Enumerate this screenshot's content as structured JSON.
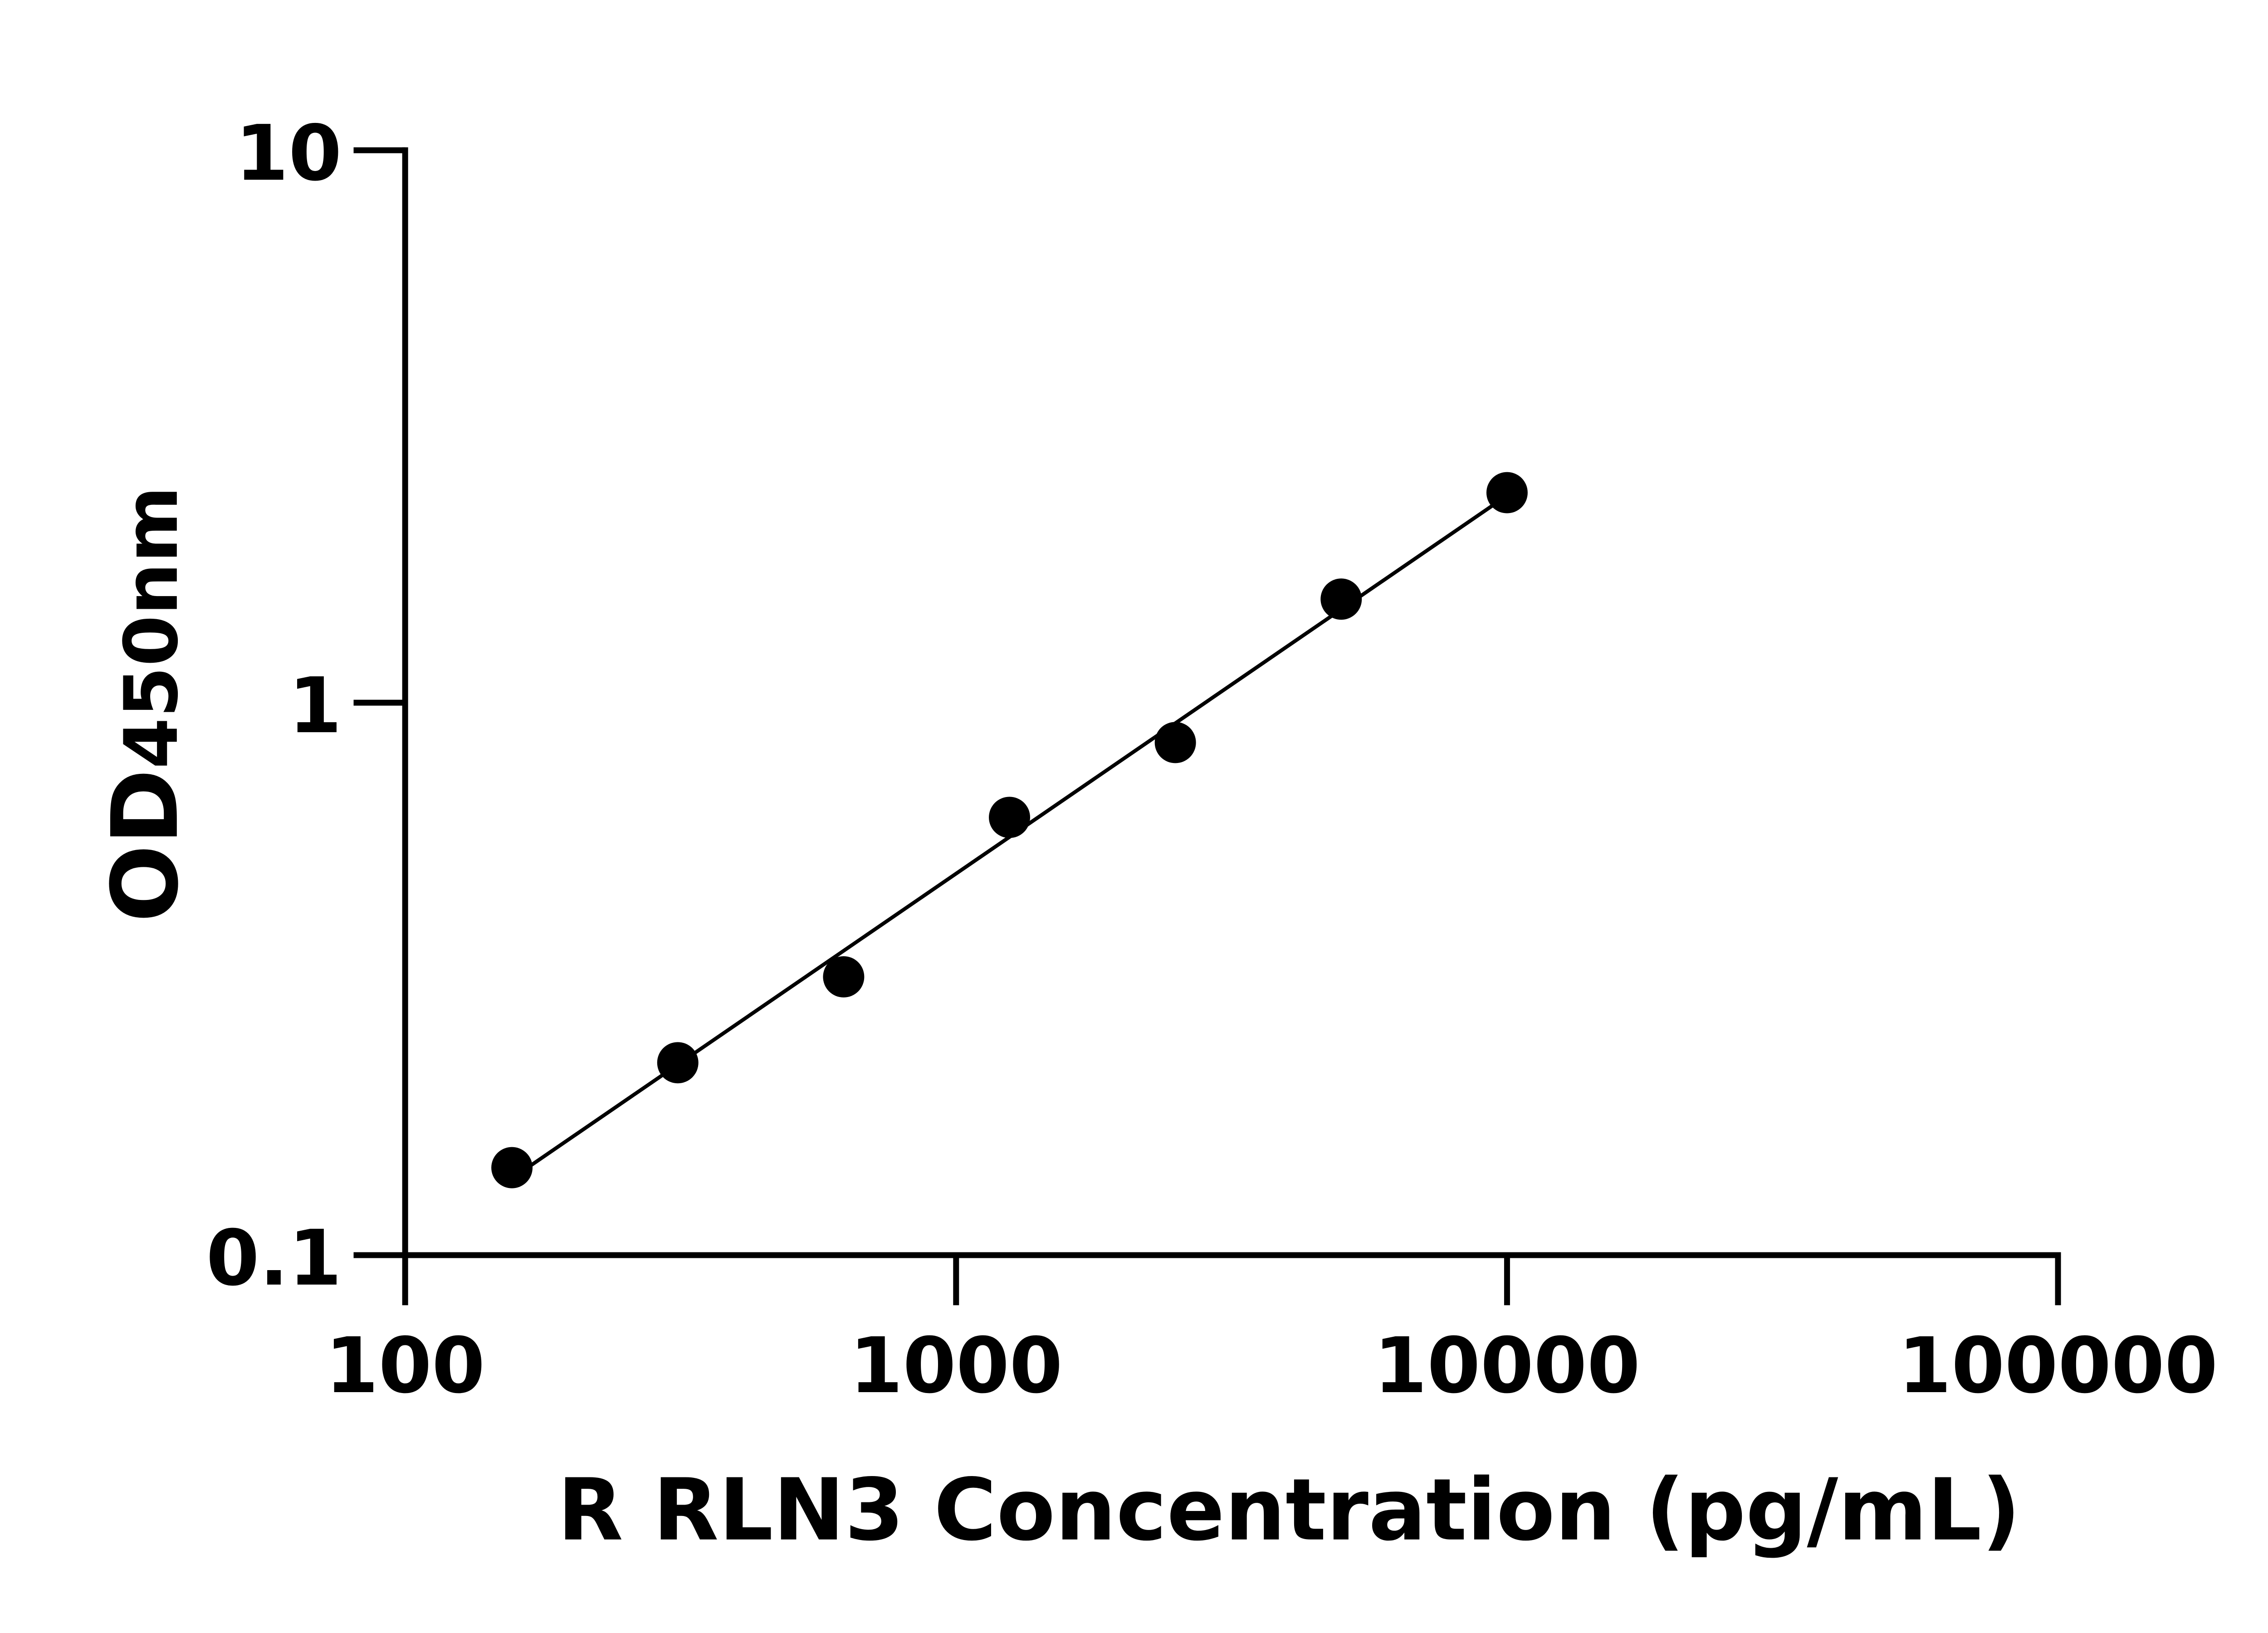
{
  "chart_data": {
    "type": "scatter",
    "title": "",
    "xlabel": "R RLN3 Concentration (pg/mL)",
    "ylabel_main": "OD",
    "ylabel_sub": "450nm",
    "xscale": "log",
    "yscale": "log",
    "xlim": [
      100,
      100000
    ],
    "ylim": [
      0.1,
      10
    ],
    "xticks": [
      "100",
      "1000",
      "10000",
      "100000"
    ],
    "yticks": [
      "10",
      "1",
      "0.1"
    ],
    "grid": false,
    "legend": "none",
    "fit_line": "log-log linear",
    "points": [
      {
        "x": 156.25,
        "y": 0.144
      },
      {
        "x": 312.5,
        "y": 0.223
      },
      {
        "x": 625,
        "y": 0.319
      },
      {
        "x": 1250,
        "y": 0.62
      },
      {
        "x": 2500,
        "y": 0.847
      },
      {
        "x": 5000,
        "y": 1.54
      },
      {
        "x": 10000,
        "y": 2.4
      }
    ],
    "color": "#000000"
  }
}
